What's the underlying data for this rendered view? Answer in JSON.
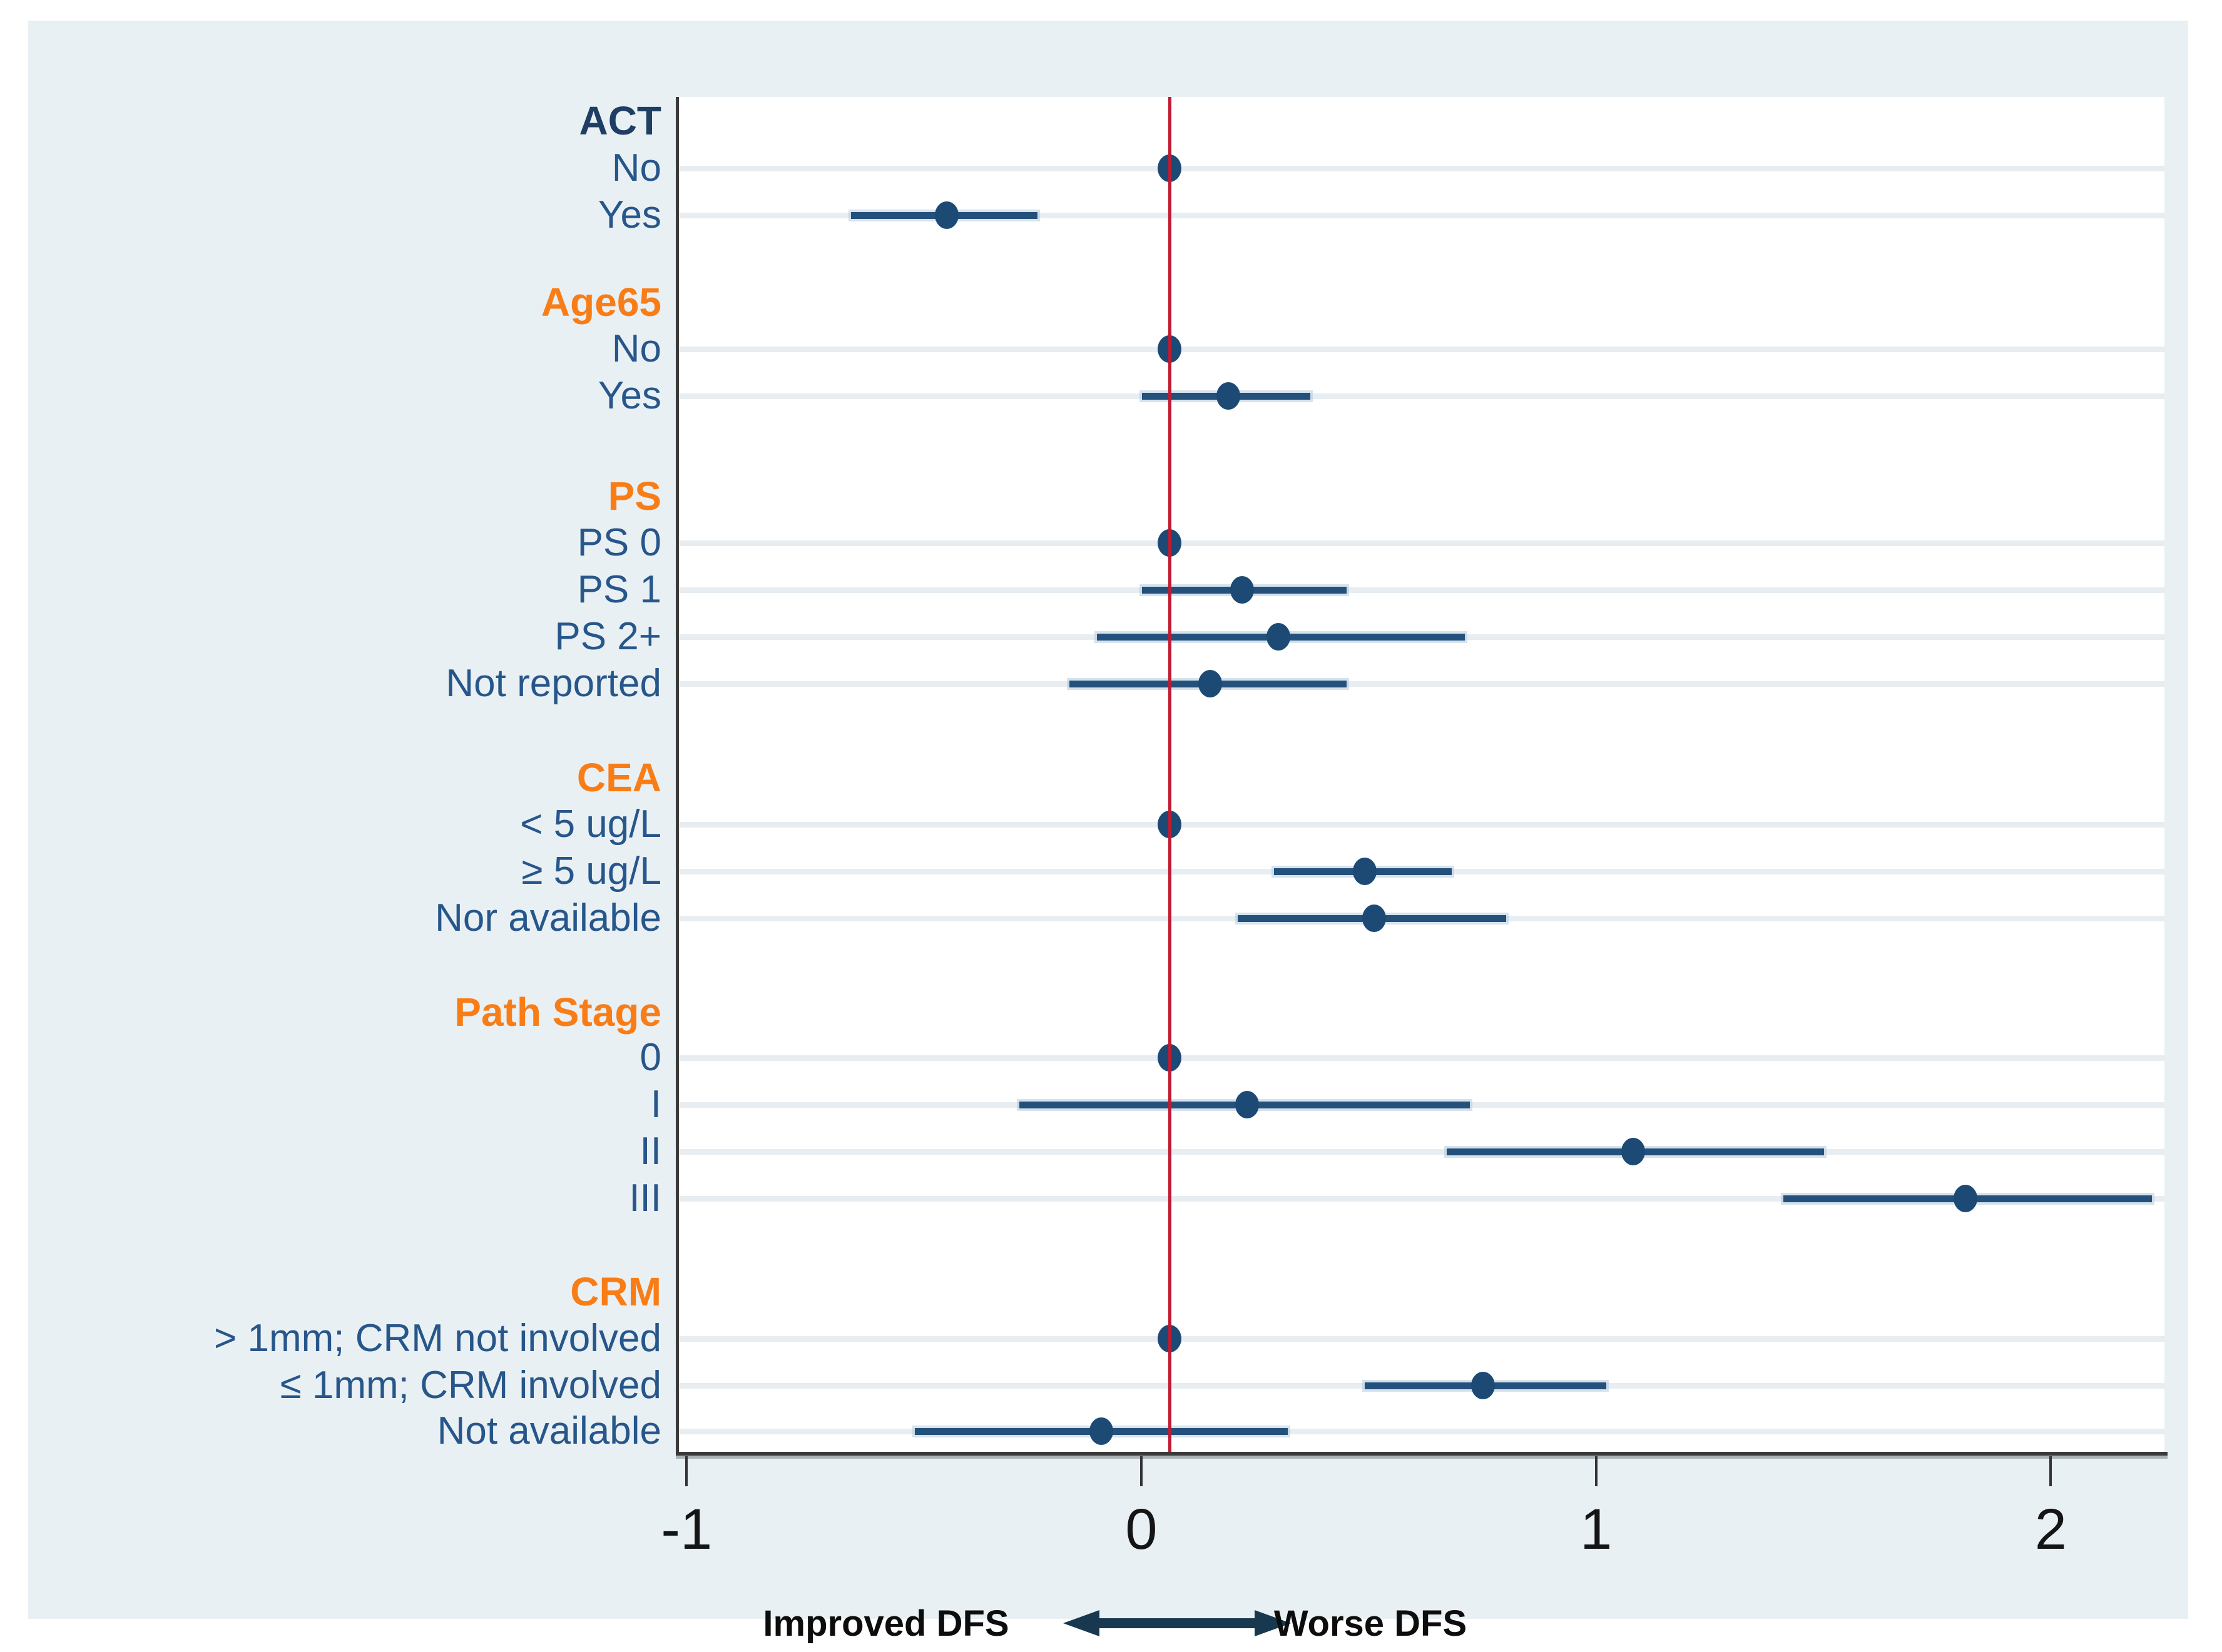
{
  "figure": {
    "description": "Forest plot of disease-free survival (DFS) estimates by subgroup",
    "background_color": "#e9f0f4",
    "plot_background": "#ffffff"
  },
  "colors": {
    "header_orange": "#f97d16",
    "header_navy": "#1f3e63",
    "row_label_blue": "#27568a",
    "marker_navy": "#1d4a75",
    "ci_bar_blue": "#24507c",
    "reference_line_red": "#c11a31",
    "gridline": "#e7edf1",
    "axis_gray": "#3a3a3a",
    "arrow_navy": "#17384f"
  },
  "chart_data": {
    "type": "scatter",
    "subtype": "forest-plot",
    "xlabel": "",
    "ylabel": "",
    "xlim": [
      -1.08,
      2.19
    ],
    "x_ticks": [
      {
        "value": -1,
        "label": "-1"
      },
      {
        "value": 0,
        "label": "0"
      },
      {
        "value": 1,
        "label": "1"
      },
      {
        "value": 2,
        "label": "2"
      }
    ],
    "reference_line_x": 0,
    "grid": "horizontal-per-row",
    "legend_position": "none",
    "direction": {
      "left_label": "Improved DFS",
      "right_label": "Worse DFS"
    },
    "groups": [
      {
        "label": "ACT",
        "header_color": "#1f3e63",
        "items": [
          {
            "label": "No",
            "reference": true,
            "est": 0
          },
          {
            "label": "Yes",
            "reference": false,
            "est": -0.49,
            "lo": -0.7,
            "hi": -0.29
          }
        ]
      },
      {
        "label": "Age65",
        "header_color": "#f97d16",
        "items": [
          {
            "label": "No",
            "reference": true,
            "est": 0
          },
          {
            "label": "Yes",
            "reference": false,
            "est": 0.13,
            "lo": -0.06,
            "hi": 0.31
          }
        ]
      },
      {
        "label": "PS",
        "header_color": "#f97d16",
        "items": [
          {
            "label": "PS 0",
            "reference": true,
            "est": 0
          },
          {
            "label": "PS 1",
            "reference": false,
            "est": 0.16,
            "lo": -0.06,
            "hi": 0.39
          },
          {
            "label": "PS 2+",
            "reference": false,
            "est": 0.24,
            "lo": -0.16,
            "hi": 0.65
          },
          {
            "label": "Not reported",
            "reference": false,
            "est": 0.09,
            "lo": -0.22,
            "hi": 0.39
          }
        ]
      },
      {
        "label": "CEA",
        "header_color": "#f97d16",
        "items": [
          {
            "label": "< 5 ug/L",
            "reference": true,
            "est": 0
          },
          {
            "label": "≥ 5 ug/L",
            "reference": false,
            "est": 0.43,
            "lo": 0.23,
            "hi": 0.62
          },
          {
            "label": "Nor available",
            "reference": false,
            "est": 0.45,
            "lo": 0.15,
            "hi": 0.74
          }
        ]
      },
      {
        "label": "Path Stage",
        "header_color": "#f97d16",
        "items": [
          {
            "label": "0",
            "reference": true,
            "est": 0
          },
          {
            "label": "I",
            "reference": false,
            "est": 0.17,
            "lo": -0.33,
            "hi": 0.66
          },
          {
            "label": "II",
            "reference": false,
            "est": 1.02,
            "lo": 0.61,
            "hi": 1.44
          },
          {
            "label": "III",
            "reference": false,
            "est": 1.75,
            "lo": 1.35,
            "hi": 2.16
          }
        ]
      },
      {
        "label": "CRM",
        "header_color": "#f97d16",
        "items": [
          {
            "label": "> 1mm; CRM not involved",
            "reference": true,
            "est": 0
          },
          {
            "label": "≤ 1mm; CRM  involved",
            "reference": false,
            "est": 0.69,
            "lo": 0.43,
            "hi": 0.96
          },
          {
            "label": "Not available",
            "reference": false,
            "est": -0.15,
            "lo": -0.56,
            "hi": 0.26
          }
        ]
      }
    ]
  }
}
